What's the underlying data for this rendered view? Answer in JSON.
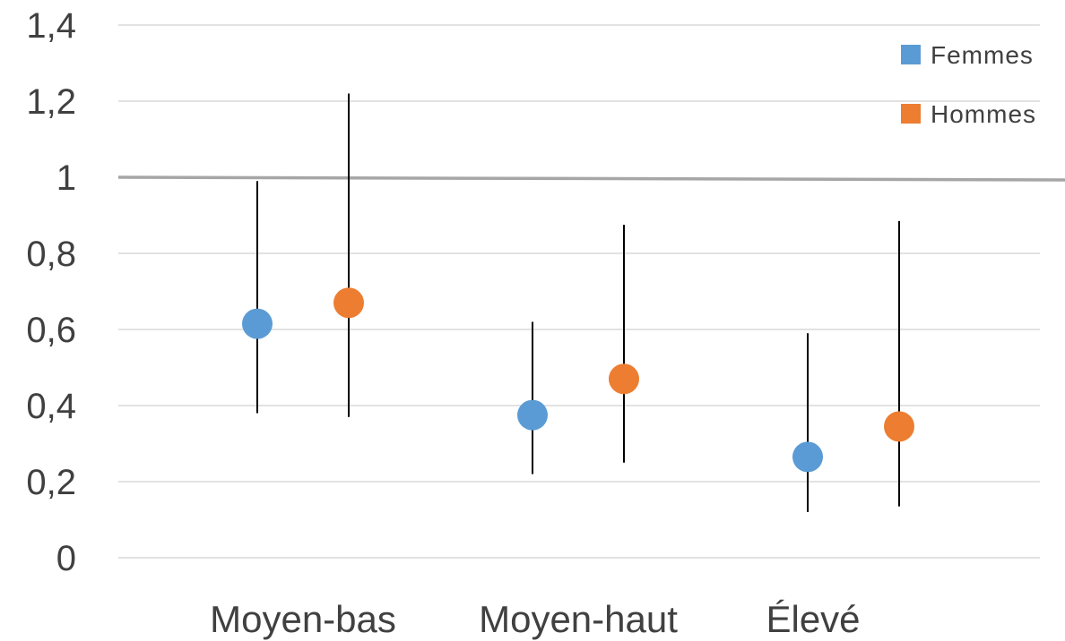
{
  "chart_data": {
    "type": "scatter",
    "title": "",
    "xlabel": "",
    "ylabel": "",
    "categories": [
      "Moyen-bas",
      "Moyen-haut",
      "Élevé"
    ],
    "ylim": [
      0,
      1.4
    ],
    "yticks": [
      {
        "value": 0,
        "label": "0"
      },
      {
        "value": 0.2,
        "label": "0,2"
      },
      {
        "value": 0.4,
        "label": "0,4"
      },
      {
        "value": 0.6,
        "label": "0,6"
      },
      {
        "value": 0.8,
        "label": "0,8"
      },
      {
        "value": 1,
        "label": "1"
      },
      {
        "value": 1.2,
        "label": "1,2"
      },
      {
        "value": 1.4,
        "label": "1,4"
      }
    ],
    "reference_line": 1,
    "grid": true,
    "legend_position": "top-right",
    "error_bars": true,
    "series": [
      {
        "name": "Femmes",
        "color": "#5B9BD5",
        "values": [
          0.615,
          0.375,
          0.265
        ],
        "lower": [
          0.38,
          0.22,
          0.12
        ],
        "upper": [
          0.99,
          0.62,
          0.59
        ]
      },
      {
        "name": "Hommes",
        "color": "#ED7D31",
        "values": [
          0.67,
          0.47,
          0.345
        ],
        "lower": [
          0.37,
          0.25,
          0.135
        ],
        "upper": [
          1.22,
          0.875,
          0.885
        ]
      }
    ],
    "colors": {
      "gridline": "#D9D9D9",
      "reference_line": "#A6A6A6",
      "error_bar": "#000000",
      "text": "#404040"
    }
  }
}
